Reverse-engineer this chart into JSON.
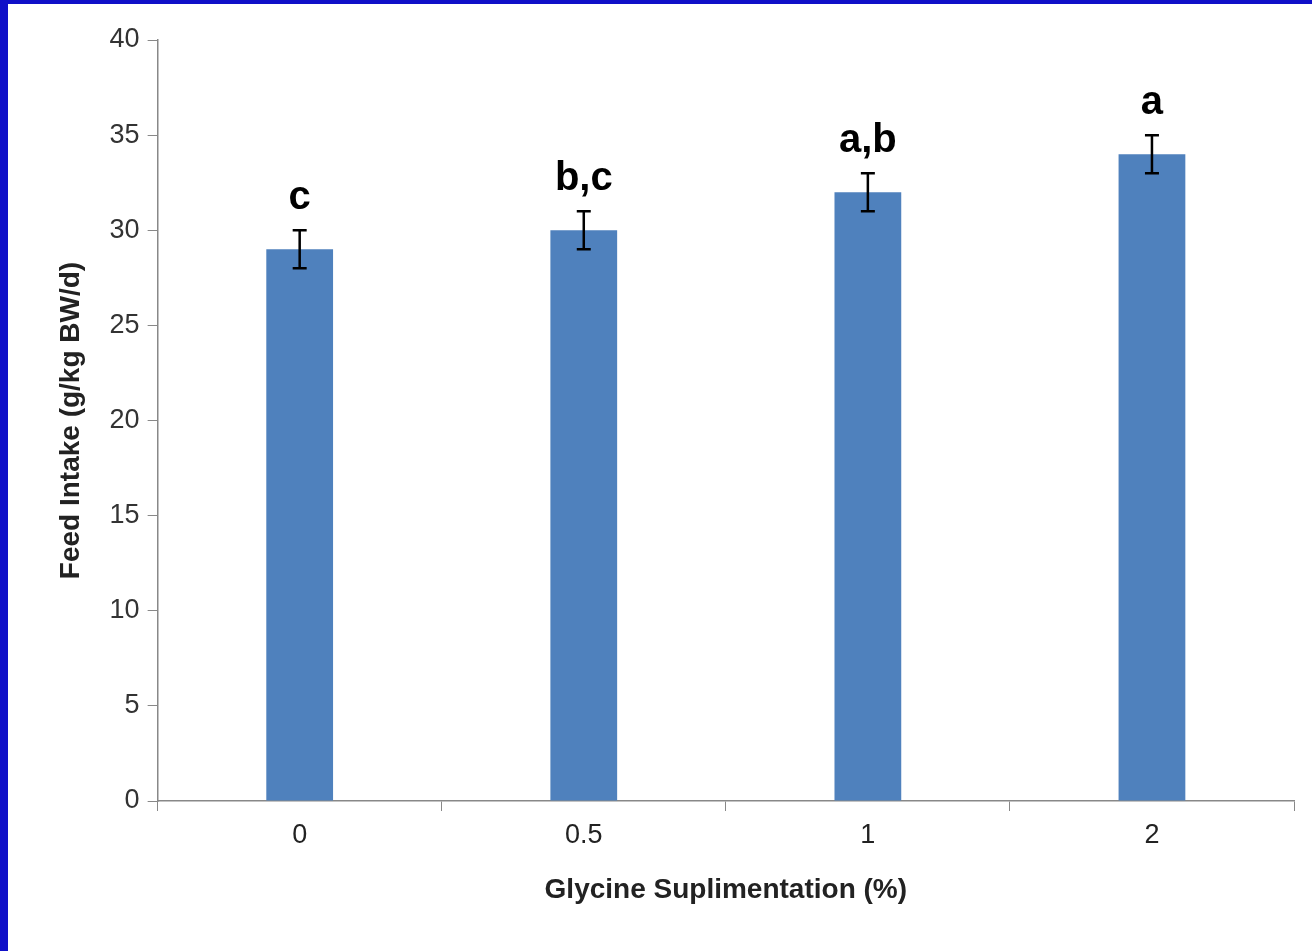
{
  "chart_data": {
    "type": "bar",
    "xlabel": "Glycine Suplimentation (%)",
    "ylabel": "Feed Intake (g/kg BW/d)",
    "categories": [
      "0",
      "0.5",
      "1",
      "2"
    ],
    "values": [
      29,
      30,
      32,
      34
    ],
    "errors": [
      1,
      1,
      1,
      1
    ],
    "color": "#4f81bd",
    "ylim": [
      0,
      40
    ],
    "yticks": [
      0,
      5,
      10,
      15,
      20,
      25,
      30,
      35,
      40
    ],
    "grid": false,
    "legend": false,
    "annotations": [
      "c",
      "b,c",
      "a,b",
      "a"
    ]
  }
}
